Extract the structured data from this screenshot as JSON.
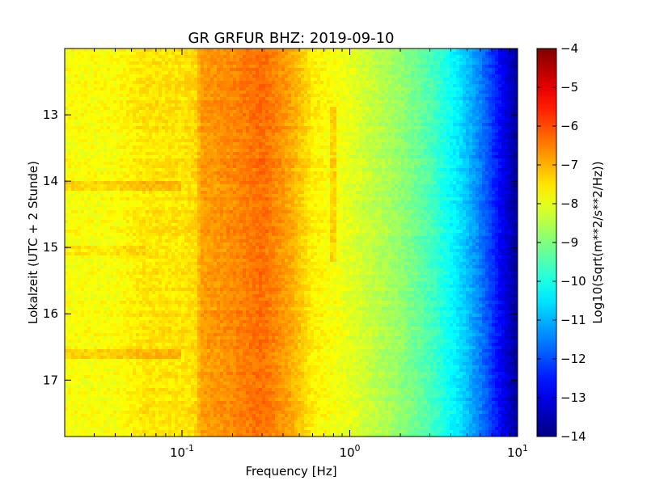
{
  "chart_data": {
    "type": "heatmap",
    "title": "GR GRFUR BHZ: 2019-09-10",
    "xlabel": "Frequency [Hz]",
    "ylabel": "Lokalzeit (UTC + 2 Stunde)",
    "x_scale": "log",
    "xlim": [
      0.02,
      10
    ],
    "ylim": [
      17.85,
      12.0
    ],
    "y_inverted": true,
    "x_ticks": [
      {
        "value": 0.1,
        "base": "10",
        "exp": "-1"
      },
      {
        "value": 1,
        "base": "10",
        "exp": "0"
      },
      {
        "value": 10,
        "base": "10",
        "exp": "1"
      }
    ],
    "y_ticks": [
      {
        "value": 13,
        "label": "13"
      },
      {
        "value": 14,
        "label": "14"
      },
      {
        "value": 15,
        "label": "15"
      },
      {
        "value": 16,
        "label": "16"
      },
      {
        "value": 17,
        "label": "17"
      }
    ],
    "colorbar": {
      "label": "Log10(Sqrt(m**2/s**2/Hz))",
      "colormap": "jet",
      "range": [
        -14,
        -4
      ],
      "ticks": [
        {
          "value": -4,
          "label": "−4"
        },
        {
          "value": -5,
          "label": "−5"
        },
        {
          "value": -6,
          "label": "−6"
        },
        {
          "value": -7,
          "label": "−7"
        },
        {
          "value": -8,
          "label": "−8"
        },
        {
          "value": -9,
          "label": "−9"
        },
        {
          "value": -10,
          "label": "−10"
        },
        {
          "value": -11,
          "label": "−11"
        },
        {
          "value": -12,
          "label": "−12"
        },
        {
          "value": -13,
          "label": "−13"
        },
        {
          "value": -14,
          "label": "−14"
        }
      ]
    },
    "spectrum_profile": [
      {
        "frequency": 0.02,
        "value": -7.8
      },
      {
        "frequency": 0.04,
        "value": -7.8
      },
      {
        "frequency": 0.06,
        "value": -7.5
      },
      {
        "frequency": 0.1,
        "value": -7.5
      },
      {
        "frequency": 0.12,
        "value": -7.4
      },
      {
        "frequency": 0.13,
        "value": -6.8
      },
      {
        "frequency": 0.2,
        "value": -6.6
      },
      {
        "frequency": 0.3,
        "value": -6.3
      },
      {
        "frequency": 0.45,
        "value": -6.9
      },
      {
        "frequency": 0.6,
        "value": -7.6
      },
      {
        "frequency": 1.0,
        "value": -8.0
      },
      {
        "frequency": 2.0,
        "value": -8.8
      },
      {
        "frequency": 3.0,
        "value": -9.5
      },
      {
        "frequency": 4.5,
        "value": -10.5
      },
      {
        "frequency": 6.0,
        "value": -11.5
      },
      {
        "frequency": 8.0,
        "value": -12.8
      },
      {
        "frequency": 10.0,
        "value": -13.8
      }
    ],
    "time_events": [
      {
        "time": 14.08,
        "max_frequency": 0.1,
        "delta": 0.5
      },
      {
        "time": 16.62,
        "max_frequency": 0.1,
        "delta": 0.55
      },
      {
        "time": 15.05,
        "max_frequency": 0.06,
        "delta": 0.3
      }
    ],
    "spectral_line": {
      "frequency": 0.78,
      "from": 12.9,
      "to": 15.2,
      "delta": 0.5
    }
  }
}
